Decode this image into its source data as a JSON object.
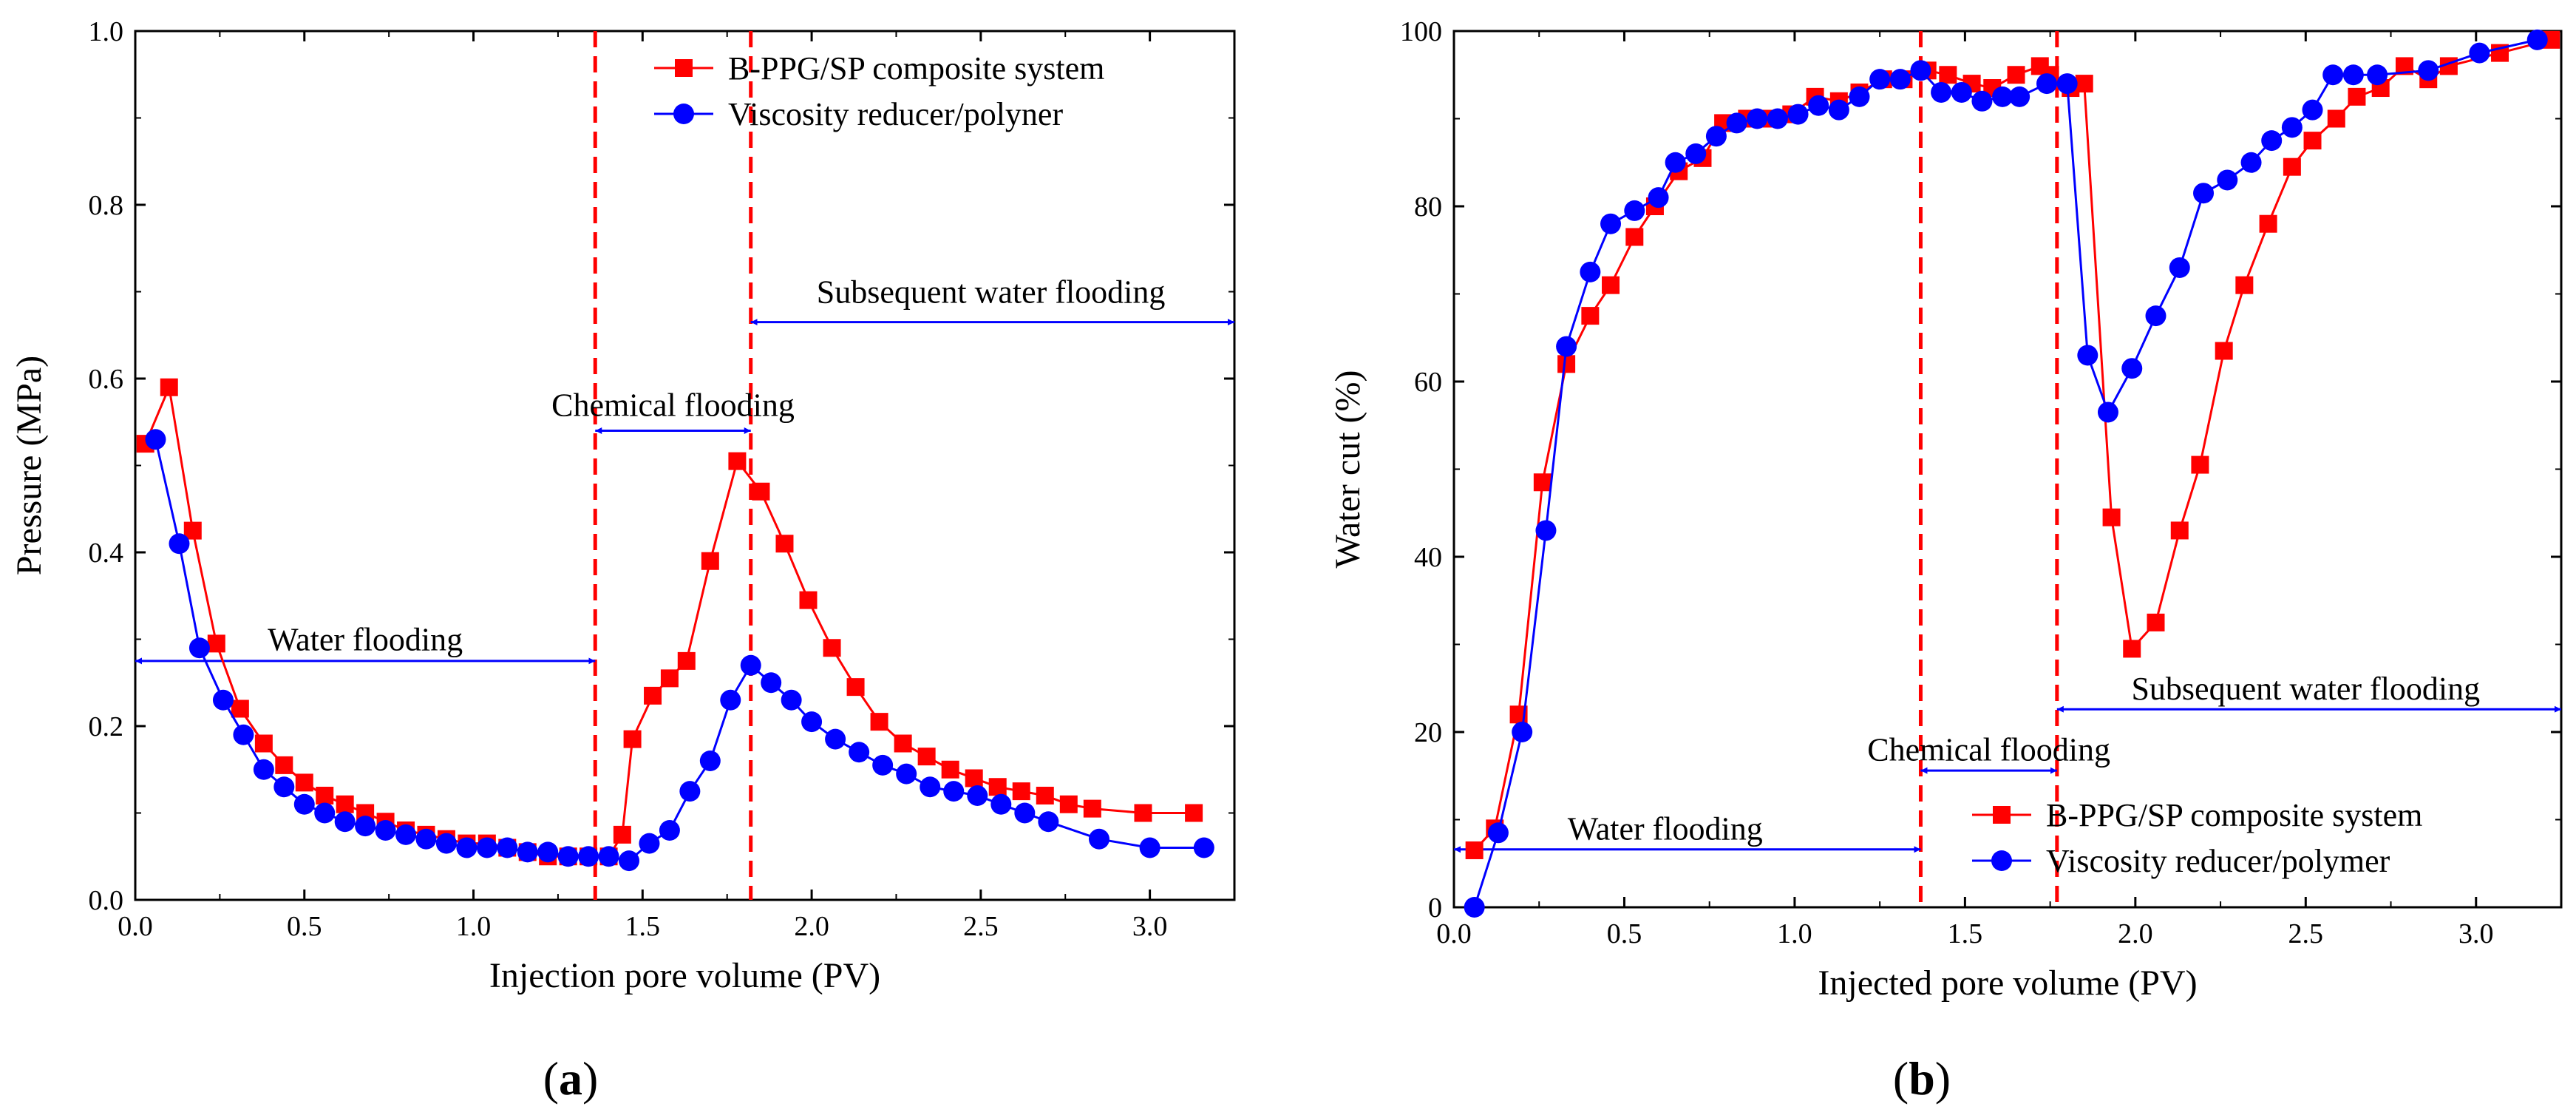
{
  "colors": {
    "red": "#ff0000",
    "blue": "#0000ff",
    "axis": "#000000"
  },
  "panels": [
    {
      "label_open": "(",
      "label_letter": "a",
      "label_close": ")"
    },
    {
      "label_open": "(",
      "label_letter": "b",
      "label_close": ")"
    }
  ],
  "chart_data": [
    {
      "type": "line",
      "xlabel": "Injection pore volume (PV)",
      "ylabel": "Pressure (MPa)",
      "xlim": [
        0,
        3.25
      ],
      "ylim": [
        0,
        1.0
      ],
      "xticks": [
        0,
        0.5,
        1.0,
        1.5,
        2.0,
        2.5,
        3.0
      ],
      "xtick_labels": [
        "0.0",
        "0.5",
        "1.0",
        "1.5",
        "2.0",
        "2.5",
        "3.0"
      ],
      "yticks": [
        0,
        0.2,
        0.4,
        0.6,
        0.8,
        1.0
      ],
      "ytick_labels": [
        "0.0",
        "0.2",
        "0.4",
        "0.6",
        "0.8",
        "1.0"
      ],
      "vlines": [
        1.36,
        1.82
      ],
      "legend_position": "top-right",
      "annotations": [
        {
          "text": "Water flooding",
          "x": 0.68,
          "y": 0.3,
          "arrow": [
            0.0,
            1.36
          ],
          "arrow_y": 0.275
        },
        {
          "text": "Chemical flooding",
          "x": 1.59,
          "y": 0.57,
          "arrow": [
            1.36,
            1.82
          ],
          "arrow_y": 0.54
        },
        {
          "text": "Subsequent water flooding",
          "x": 2.53,
          "y": 0.7,
          "arrow": [
            1.82,
            3.25
          ],
          "arrow_y": 0.665
        }
      ],
      "series": [
        {
          "name": "B-PPG/SP composite system",
          "color": "#ff0000",
          "marker": "square",
          "x": [
            0.03,
            0.1,
            0.17,
            0.24,
            0.31,
            0.38,
            0.44,
            0.5,
            0.56,
            0.62,
            0.68,
            0.74,
            0.8,
            0.86,
            0.92,
            0.98,
            1.04,
            1.1,
            1.16,
            1.22,
            1.28,
            1.34,
            1.4,
            1.44,
            1.47,
            1.53,
            1.58,
            1.63,
            1.7,
            1.78,
            1.85,
            1.92,
            1.99,
            2.06,
            2.13,
            2.2,
            2.27,
            2.34,
            2.41,
            2.48,
            2.55,
            2.62,
            2.69,
            2.76,
            2.83,
            2.98,
            3.13
          ],
          "values": [
            0.525,
            0.59,
            0.425,
            0.295,
            0.22,
            0.18,
            0.155,
            0.135,
            0.12,
            0.11,
            0.1,
            0.09,
            0.08,
            0.075,
            0.07,
            0.065,
            0.065,
            0.06,
            0.055,
            0.05,
            0.05,
            0.05,
            0.05,
            0.075,
            0.185,
            0.235,
            0.255,
            0.275,
            0.39,
            0.505,
            0.47,
            0.41,
            0.345,
            0.29,
            0.245,
            0.205,
            0.18,
            0.165,
            0.15,
            0.14,
            0.13,
            0.125,
            0.12,
            0.11,
            0.105,
            0.1,
            0.1
          ]
        },
        {
          "name": "Viscosity reducer/polyner",
          "color": "#0000ff",
          "marker": "circle",
          "x": [
            0.06,
            0.13,
            0.19,
            0.26,
            0.32,
            0.38,
            0.44,
            0.5,
            0.56,
            0.62,
            0.68,
            0.74,
            0.8,
            0.86,
            0.92,
            0.98,
            1.04,
            1.1,
            1.16,
            1.22,
            1.28,
            1.34,
            1.4,
            1.46,
            1.52,
            1.58,
            1.64,
            1.7,
            1.76,
            1.82,
            1.88,
            1.94,
            2.0,
            2.07,
            2.14,
            2.21,
            2.28,
            2.35,
            2.42,
            2.49,
            2.56,
            2.63,
            2.7,
            2.85,
            3.0,
            3.16
          ],
          "values": [
            0.53,
            0.41,
            0.29,
            0.23,
            0.19,
            0.15,
            0.13,
            0.11,
            0.1,
            0.09,
            0.085,
            0.08,
            0.075,
            0.07,
            0.065,
            0.06,
            0.06,
            0.06,
            0.055,
            0.055,
            0.05,
            0.05,
            0.05,
            0.045,
            0.065,
            0.08,
            0.125,
            0.16,
            0.23,
            0.27,
            0.25,
            0.23,
            0.205,
            0.185,
            0.17,
            0.155,
            0.145,
            0.13,
            0.125,
            0.12,
            0.11,
            0.1,
            0.09,
            0.07,
            0.06,
            0.06
          ]
        }
      ]
    },
    {
      "type": "line",
      "xlabel": "Injected pore volume (PV)",
      "ylabel": "Water cut (%)",
      "xlim": [
        0,
        3.25
      ],
      "ylim": [
        0,
        100
      ],
      "xticks": [
        0,
        0.5,
        1.0,
        1.5,
        2.0,
        2.5,
        3.0
      ],
      "xtick_labels": [
        "0.0",
        "0.5",
        "1.0",
        "1.5",
        "2.0",
        "2.5",
        "3.0"
      ],
      "yticks": [
        0,
        20,
        40,
        60,
        80,
        100
      ],
      "ytick_labels": [
        "0",
        "20",
        "40",
        "60",
        "80",
        "100"
      ],
      "vlines": [
        1.37,
        1.77
      ],
      "legend_position": "bottom-right",
      "annotations": [
        {
          "text": "Water flooding",
          "x": 0.62,
          "y": 9.0,
          "arrow": [
            0.0,
            1.37
          ],
          "arrow_y": 6.6
        },
        {
          "text": "Chemical flooding",
          "x": 1.57,
          "y": 18.0,
          "arrow": [
            1.37,
            1.77
          ],
          "arrow_y": 15.6
        },
        {
          "text": "Subsequent water flooding",
          "x": 2.5,
          "y": 25.0,
          "arrow": [
            1.77,
            3.25
          ],
          "arrow_y": 22.6
        }
      ],
      "series": [
        {
          "name": "B-PPG/SP composite system",
          "color": "#ff0000",
          "marker": "square",
          "x": [
            0.06,
            0.12,
            0.19,
            0.26,
            0.33,
            0.4,
            0.46,
            0.53,
            0.59,
            0.66,
            0.73,
            0.79,
            0.86,
            0.93,
            0.99,
            1.06,
            1.13,
            1.19,
            1.26,
            1.32,
            1.39,
            1.45,
            1.52,
            1.58,
            1.65,
            1.72,
            1.75,
            1.81,
            1.85,
            1.93,
            1.99,
            2.06,
            2.13,
            2.19,
            2.26,
            2.32,
            2.39,
            2.46,
            2.52,
            2.59,
            2.65,
            2.72,
            2.79,
            2.86,
            2.92,
            3.07,
            3.22
          ],
          "values": [
            6.5,
            9.0,
            22.0,
            48.5,
            62.0,
            67.5,
            71.0,
            76.5,
            80.0,
            84.0,
            85.5,
            89.5,
            90.0,
            90.0,
            90.5,
            92.5,
            92.0,
            93.0,
            94.5,
            94.5,
            95.5,
            95.0,
            94.0,
            93.5,
            95.0,
            96.0,
            95.0,
            93.5,
            94.0,
            44.5,
            29.5,
            32.5,
            43.0,
            50.5,
            63.5,
            71.0,
            78.0,
            84.5,
            87.5,
            90.0,
            92.5,
            93.5,
            96.0,
            94.5,
            96.0,
            97.5,
            99.0
          ]
        },
        {
          "name": "Viscosity reducer/polymer",
          "color": "#0000ff",
          "marker": "circle",
          "x": [
            0.06,
            0.13,
            0.2,
            0.27,
            0.33,
            0.4,
            0.46,
            0.53,
            0.6,
            0.65,
            0.71,
            0.77,
            0.83,
            0.89,
            0.95,
            1.01,
            1.07,
            1.13,
            1.19,
            1.25,
            1.31,
            1.37,
            1.43,
            1.49,
            1.55,
            1.61,
            1.66,
            1.74,
            1.8,
            1.86,
            1.92,
            1.99,
            2.06,
            2.13,
            2.2,
            2.27,
            2.34,
            2.4,
            2.46,
            2.52,
            2.58,
            2.64,
            2.71,
            2.86,
            3.01,
            3.18
          ],
          "values": [
            0.0,
            8.5,
            20.0,
            43.0,
            64.0,
            72.5,
            78.0,
            79.5,
            81.0,
            85.0,
            86.0,
            88.0,
            89.5,
            90.0,
            90.0,
            90.5,
            91.5,
            91.0,
            92.5,
            94.5,
            94.5,
            95.5,
            93.0,
            93.0,
            92.0,
            92.5,
            92.5,
            94.0,
            94.0,
            63.0,
            56.5,
            61.5,
            67.5,
            73.0,
            81.5,
            83.0,
            85.0,
            87.5,
            89.0,
            91.0,
            95.0,
            95.0,
            95.0,
            95.5,
            97.5,
            99.0
          ]
        }
      ]
    }
  ]
}
